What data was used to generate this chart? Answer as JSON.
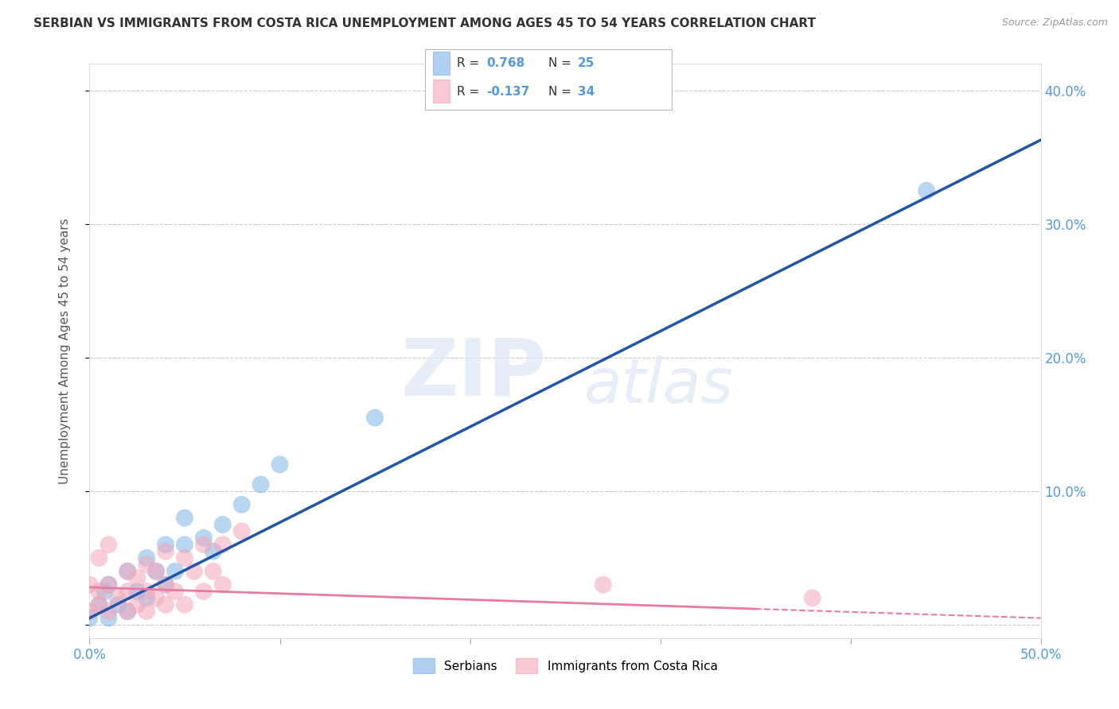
{
  "title": "SERBIAN VS IMMIGRANTS FROM COSTA RICA UNEMPLOYMENT AMONG AGES 45 TO 54 YEARS CORRELATION CHART",
  "source": "Source: ZipAtlas.com",
  "ylabel": "Unemployment Among Ages 45 to 54 years",
  "xlabel": "",
  "xlim": [
    0.0,
    0.5
  ],
  "ylim": [
    -0.01,
    0.42
  ],
  "xticks": [
    0.0,
    0.1,
    0.2,
    0.3,
    0.4,
    0.5
  ],
  "xtick_labels": [
    "0.0%",
    "",
    "",
    "",
    "",
    "50.0%"
  ],
  "yticks": [
    0.0,
    0.1,
    0.2,
    0.3,
    0.4
  ],
  "right_ytick_labels": [
    "",
    "10.0%",
    "20.0%",
    "30.0%",
    "40.0%"
  ],
  "serbian_color": "#7fb3e8",
  "costa_rica_color": "#f4a7b9",
  "serbian_R": 0.768,
  "serbian_N": 25,
  "costa_rica_R": -0.137,
  "costa_rica_N": 34,
  "legend_label_serbian": "Serbians",
  "legend_label_costa_rica": "Immigrants from Costa Rica",
  "watermark_zip": "ZIP",
  "watermark_atlas": "atlas",
  "serbian_scatter_x": [
    0.0,
    0.005,
    0.008,
    0.01,
    0.01,
    0.015,
    0.02,
    0.02,
    0.025,
    0.03,
    0.03,
    0.035,
    0.04,
    0.04,
    0.045,
    0.05,
    0.05,
    0.06,
    0.065,
    0.07,
    0.08,
    0.09,
    0.1,
    0.15,
    0.44
  ],
  "serbian_scatter_y": [
    0.005,
    0.015,
    0.025,
    0.005,
    0.03,
    0.015,
    0.01,
    0.04,
    0.025,
    0.02,
    0.05,
    0.04,
    0.03,
    0.06,
    0.04,
    0.06,
    0.08,
    0.065,
    0.055,
    0.075,
    0.09,
    0.105,
    0.12,
    0.155,
    0.325
  ],
  "costa_rica_scatter_x": [
    0.0,
    0.0,
    0.005,
    0.005,
    0.005,
    0.01,
    0.01,
    0.01,
    0.015,
    0.02,
    0.02,
    0.02,
    0.025,
    0.025,
    0.03,
    0.03,
    0.03,
    0.035,
    0.035,
    0.04,
    0.04,
    0.04,
    0.045,
    0.05,
    0.05,
    0.055,
    0.06,
    0.06,
    0.065,
    0.07,
    0.07,
    0.08,
    0.27,
    0.38
  ],
  "costa_rica_scatter_y": [
    0.01,
    0.03,
    0.015,
    0.025,
    0.05,
    0.01,
    0.03,
    0.06,
    0.02,
    0.01,
    0.025,
    0.04,
    0.015,
    0.035,
    0.01,
    0.025,
    0.045,
    0.02,
    0.04,
    0.015,
    0.03,
    0.055,
    0.025,
    0.015,
    0.05,
    0.04,
    0.025,
    0.06,
    0.04,
    0.03,
    0.06,
    0.07,
    0.03,
    0.02
  ],
  "serbian_line_color": "#2255aa",
  "costa_rica_line_color": "#e87ba0",
  "background_color": "#ffffff",
  "grid_color": "#cccccc",
  "tick_color": "#5599dd",
  "title_color": "#333333",
  "source_color": "#999999",
  "ylabel_color": "#555555"
}
